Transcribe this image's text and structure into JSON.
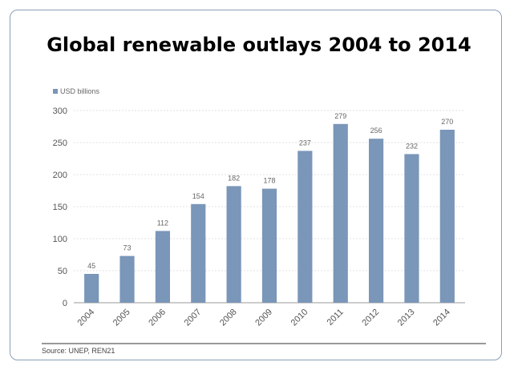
{
  "title": "Global renewable outlays 2004 to 2014",
  "source": "Source: UNEP, REN21",
  "chart_data": {
    "type": "bar",
    "title": "Global renewable outlays 2004 to 2014",
    "categories": [
      "2004",
      "2005",
      "2006",
      "2007",
      "2008",
      "2009",
      "2010",
      "2011",
      "2012",
      "2013",
      "2014"
    ],
    "series": [
      {
        "name": "USD billions",
        "values": [
          45,
          73,
          112,
          154,
          182,
          178,
          237,
          279,
          256,
          232,
          270
        ]
      }
    ],
    "ylim": [
      0,
      300
    ],
    "yticks": [
      0,
      50,
      100,
      150,
      200,
      250,
      300
    ],
    "bar_color": "#7a96b8",
    "grid": true,
    "legend": "top-left",
    "data_labels": true
  }
}
